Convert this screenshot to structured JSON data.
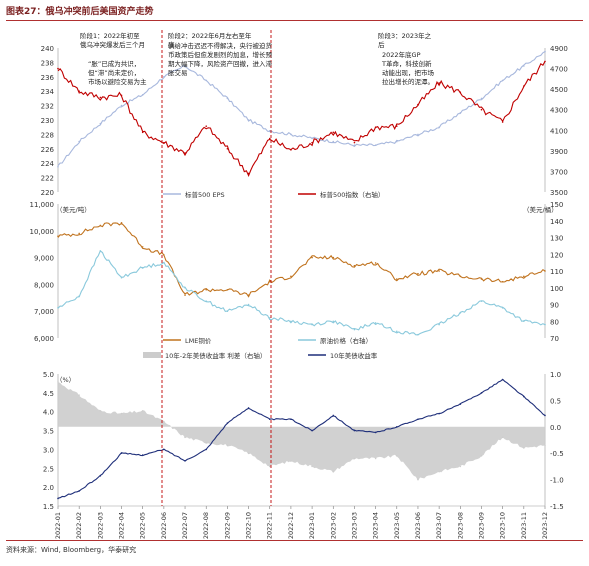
{
  "figure": {
    "title": "图表27：俄乌冲突前后美国资产走势",
    "source": "资料来源：Wind, Bloomberg，华泰研究"
  },
  "colors": {
    "accent": "#7a1f1f",
    "red": "#c00000",
    "lightblue": "#a8b8dd",
    "brown": "#c0731f",
    "cyan": "#8ac9dc",
    "navy": "#1f2f7a",
    "gray": "#cccccc"
  },
  "annotations": {
    "stage1": "阶段1：2022年初至俄乌冲突爆发后三个月",
    "stage1_body": "“胀”已成为共识，但“滞”尚未定价，市场以避险交易为主",
    "stage2": "阶段2：2022年6月左右至年底",
    "stage2_body": "供给冲击迟迟不得解决，央行被迫货币政策后但愈发剧烈的加息，增长预期大幅下降，风险资产回撤，进入滞胀交易",
    "stage3": "阶段3：2023年之后",
    "stage3_body": "2022年底GPT革命，科技创新动能出现，把市场拉出增长的泥潭。"
  },
  "x_ticks": [
    "2022-01",
    "2022-02",
    "2022-03",
    "2022-04",
    "2022-05",
    "2022-06",
    "2022-07",
    "2022-08",
    "2022-09",
    "2022-10",
    "2022-11",
    "2022-12",
    "2023-01",
    "2023-02",
    "2023-03",
    "2023-04",
    "2023-05",
    "2023-06",
    "2023-07",
    "2023-08",
    "2023-09",
    "2023-10",
    "2023-11",
    "2023-12"
  ],
  "chart_data": [
    {
      "type": "line",
      "panel": "top",
      "x": [
        "2022-01",
        "2022-02",
        "2022-03",
        "2022-04",
        "2022-05",
        "2022-06",
        "2022-07",
        "2022-08",
        "2022-09",
        "2022-10",
        "2022-11",
        "2022-12",
        "2023-01",
        "2023-02",
        "2023-03",
        "2023-04",
        "2023-05",
        "2023-06",
        "2023-07",
        "2023-08",
        "2023-09",
        "2023-10",
        "2023-11",
        "2023-12"
      ],
      "y_left": {
        "ylim": [
          220,
          240
        ],
        "ticks": [
          "240",
          "238",
          "236",
          "234",
          "232",
          "230",
          "228",
          "226",
          "224",
          "222",
          "220"
        ]
      },
      "y_right": {
        "ylim": [
          3500,
          4900
        ],
        "ticks": [
          "4900",
          "4700",
          "4500",
          "4300",
          "4100",
          "3900",
          "3700",
          "3500"
        ]
      },
      "series": [
        {
          "name": "标普500 EPS",
          "axis": "left",
          "color": "#a8b8dd",
          "values": [
            223.5,
            227,
            229.5,
            232,
            233.5,
            236,
            237.5,
            235.5,
            233,
            230,
            228.5,
            228,
            227.5,
            227,
            226.5,
            226.5,
            227,
            228,
            229,
            231,
            233,
            235.5,
            237.5,
            239.5
          ]
        },
        {
          "name": "标普500指数（右轴）",
          "axis": "right",
          "color": "#c00000",
          "values": [
            4700,
            4480,
            4420,
            4440,
            4080,
            3980,
            3880,
            4140,
            3920,
            3680,
            4020,
            3910,
            3980,
            4080,
            3980,
            4130,
            4140,
            4350,
            4560,
            4470,
            4300,
            4180,
            4530,
            4770
          ]
        }
      ]
    },
    {
      "type": "line",
      "panel": "middle",
      "x": [
        "2022-01",
        "2022-02",
        "2022-03",
        "2022-04",
        "2022-05",
        "2022-06",
        "2022-07",
        "2022-08",
        "2022-09",
        "2022-10",
        "2022-11",
        "2022-12",
        "2023-01",
        "2023-02",
        "2023-03",
        "2023-04",
        "2023-05",
        "2023-06",
        "2023-07",
        "2023-08",
        "2023-09",
        "2023-10",
        "2023-11",
        "2023-12"
      ],
      "y_left": {
        "label": "（美元/吨）",
        "ylim": [
          6000,
          11000
        ],
        "ticks": [
          "11,000",
          "10,000",
          "9,000",
          "8,000",
          "7,000",
          "6,000"
        ]
      },
      "y_right": {
        "label": "（美元/桶）",
        "ylim": [
          70,
          150
        ],
        "ticks": [
          "150",
          "140",
          "130",
          "120",
          "110",
          "100",
          "90",
          "80",
          "70"
        ]
      },
      "series": [
        {
          "name": "LME铜价",
          "axis": "left",
          "color": "#c0731f",
          "values": [
            9800,
            9900,
            10200,
            10300,
            9400,
            9100,
            7600,
            7800,
            7800,
            7600,
            8100,
            8300,
            9000,
            9000,
            8700,
            8800,
            8200,
            8400,
            8500,
            8300,
            8200,
            8100,
            8300,
            8500
          ]
        },
        {
          "name": "原油价格（右轴）",
          "axis": "right",
          "color": "#8ac9dc",
          "values": [
            88,
            95,
            122,
            106,
            112,
            115,
            100,
            92,
            86,
            90,
            82,
            80,
            78,
            80,
            75,
            79,
            74,
            72,
            78,
            85,
            92,
            88,
            80,
            78
          ]
        }
      ]
    },
    {
      "type": "area",
      "panel": "bottom",
      "x": [
        "2022-01",
        "2022-02",
        "2022-03",
        "2022-04",
        "2022-05",
        "2022-06",
        "2022-07",
        "2022-08",
        "2022-09",
        "2022-10",
        "2022-11",
        "2022-12",
        "2023-01",
        "2023-02",
        "2023-03",
        "2023-04",
        "2023-05",
        "2023-06",
        "2023-07",
        "2023-08",
        "2023-09",
        "2023-10",
        "2023-11",
        "2023-12"
      ],
      "y_left": {
        "label": "（%）",
        "ylim": [
          1.5,
          5.0
        ],
        "ticks": [
          "5.0",
          "4.5",
          "4.0",
          "3.5",
          "3.0",
          "2.5",
          "2.0",
          "1.5"
        ]
      },
      "y_right": {
        "ylim": [
          -1.5,
          1.0
        ],
        "ticks": [
          "1.0",
          "0.5",
          "0.0",
          "-0.5",
          "-1.0",
          "-1.5"
        ]
      },
      "series": [
        {
          "name": "10年-2年美债收益率 利差（右轴）",
          "axis": "right",
          "color": "#cccccc",
          "values": [
            0.85,
            0.6,
            0.3,
            0.25,
            0.3,
            0.1,
            -0.2,
            -0.3,
            -0.35,
            -0.5,
            -0.75,
            -0.65,
            -0.75,
            -0.85,
            -0.6,
            -0.6,
            -0.55,
            -1.0,
            -0.85,
            -0.75,
            -0.55,
            -0.2,
            -0.4,
            -0.35
          ]
        },
        {
          "name": "10年美债收益率",
          "axis": "left",
          "color": "#1f2f7a",
          "values": [
            1.7,
            1.9,
            2.3,
            2.9,
            2.85,
            3.0,
            2.7,
            3.0,
            3.7,
            4.1,
            3.8,
            3.8,
            3.5,
            3.9,
            3.5,
            3.45,
            3.6,
            3.8,
            3.95,
            4.2,
            4.5,
            4.85,
            4.4,
            3.9
          ]
        }
      ]
    }
  ]
}
